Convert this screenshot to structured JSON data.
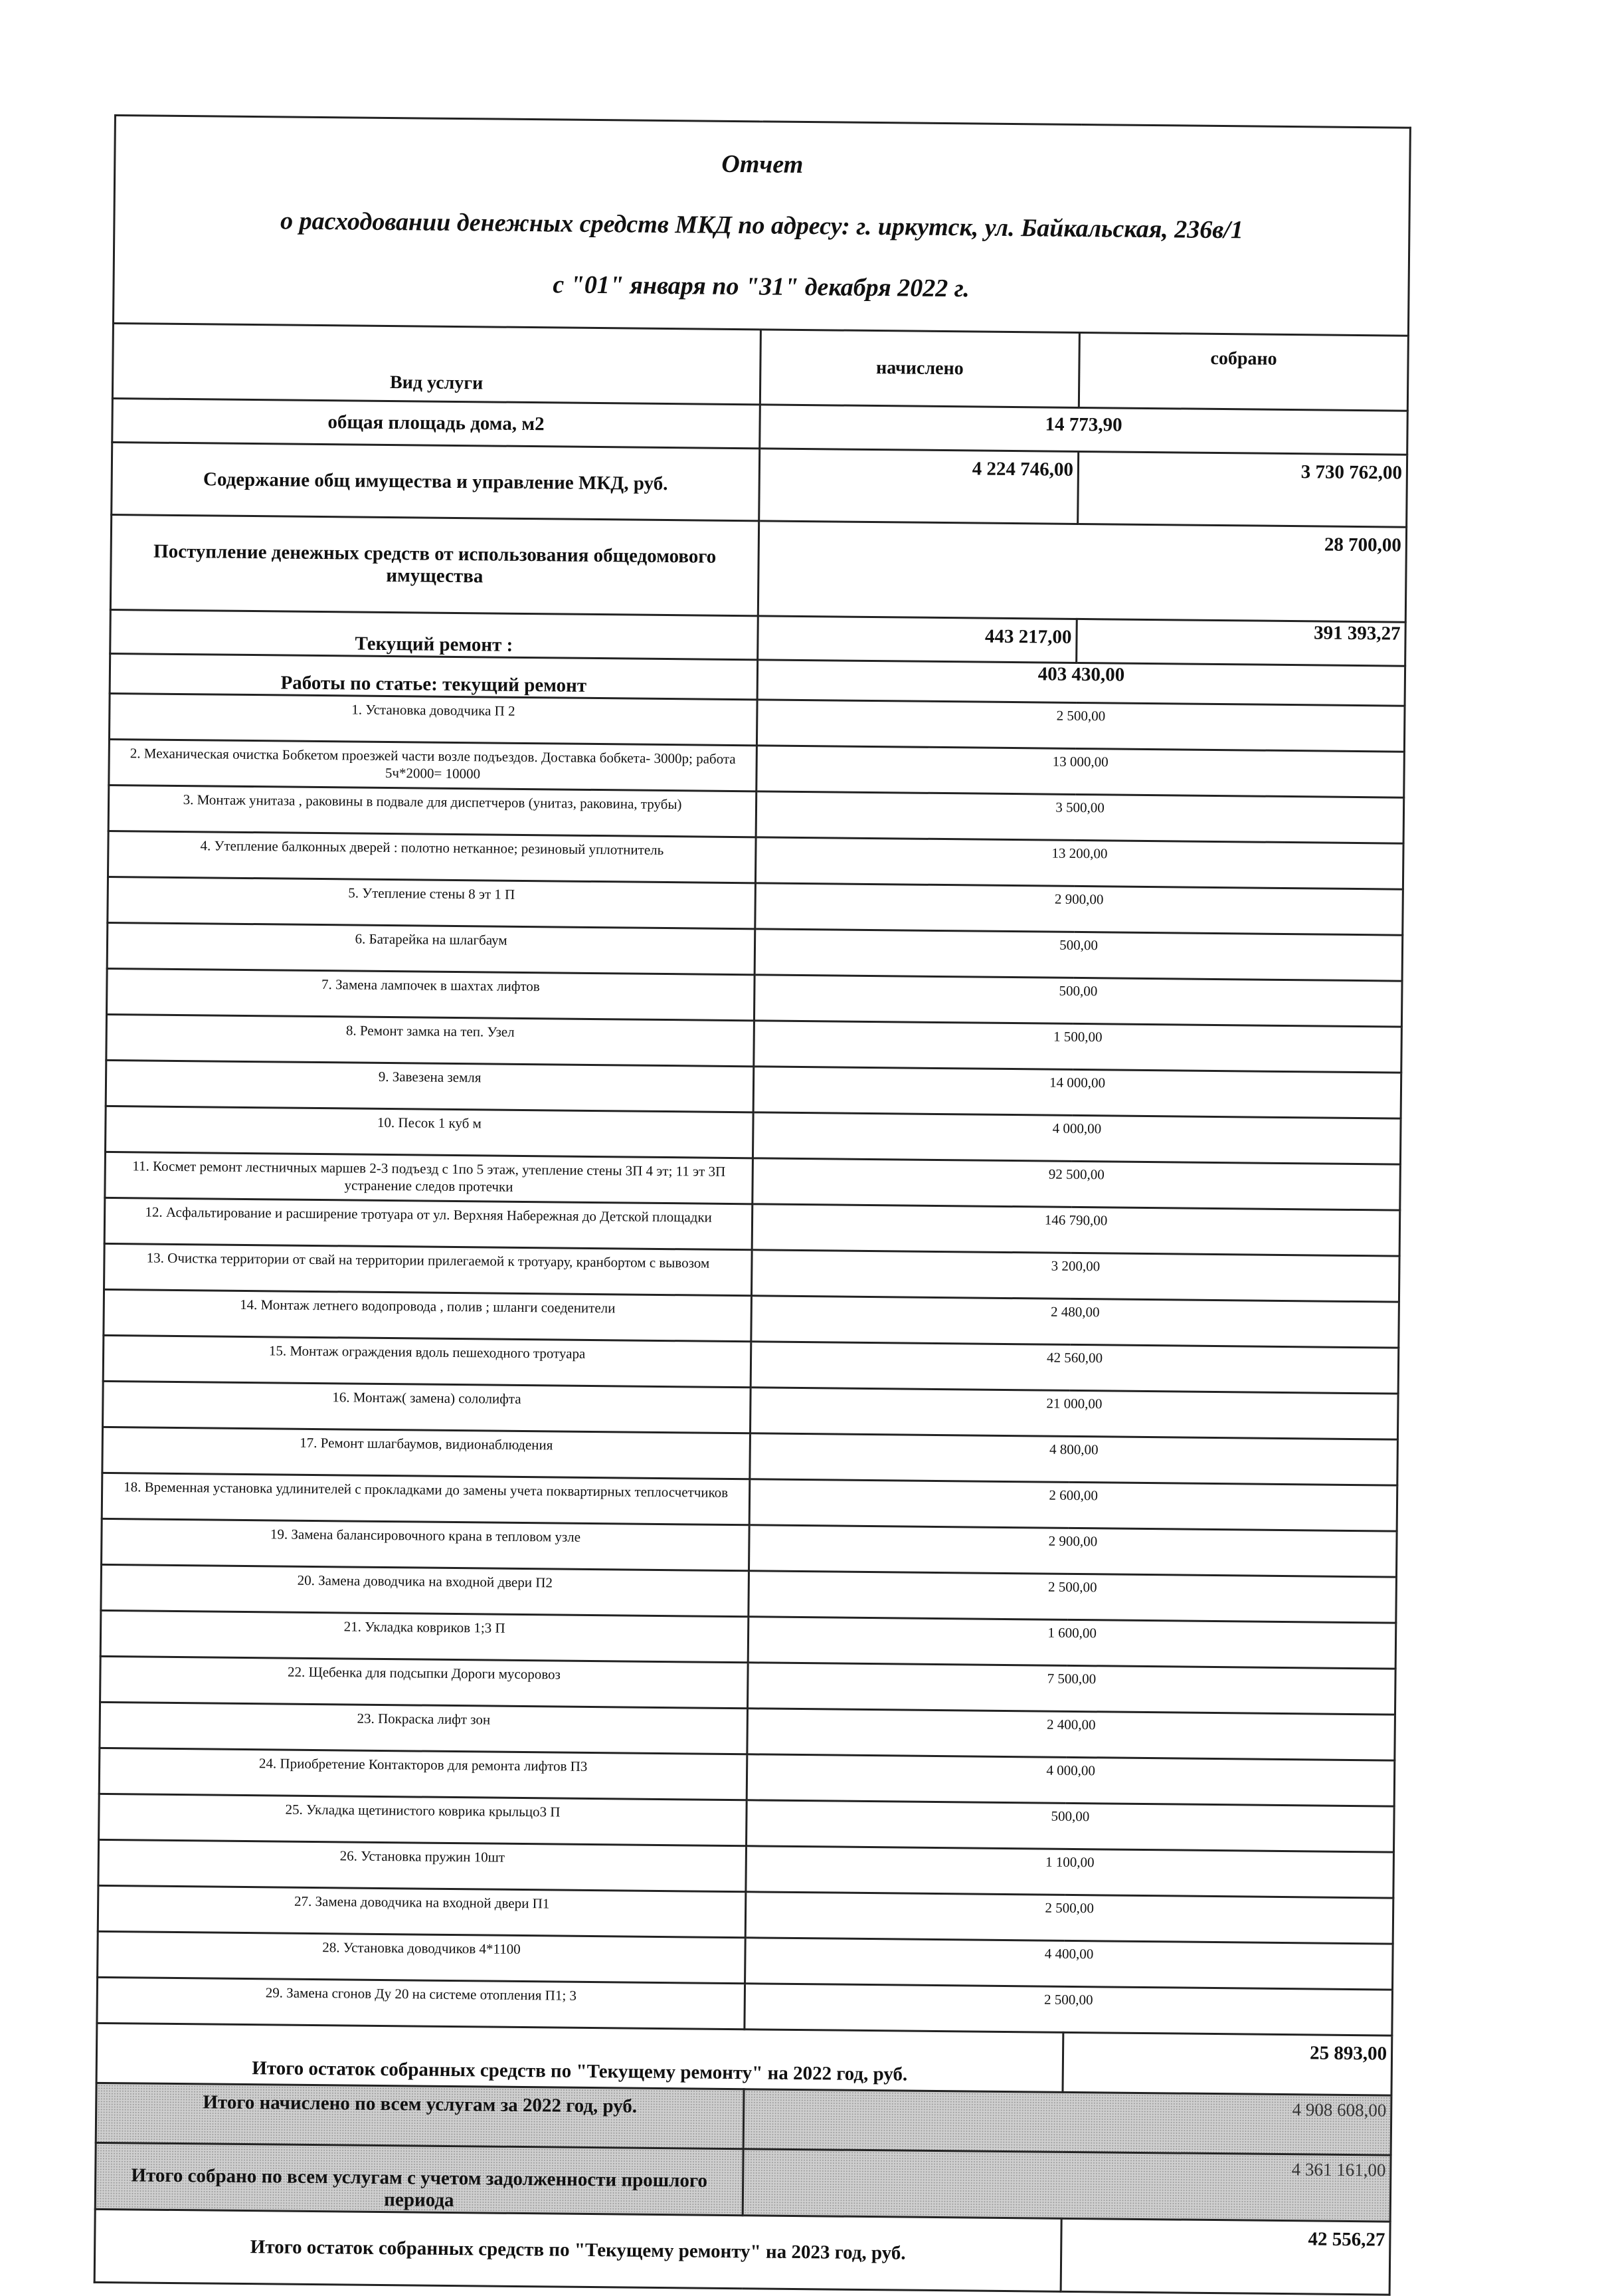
{
  "header": {
    "title": "Отчет",
    "subtitle": "о расходовании денежных средств МКД по адресу: г. иркутск, ул. Байкальская, 236в/1",
    "period": "с \"01\" января по \"31\" декабря 2022 г."
  },
  "columns": {
    "service": "Вид услуги",
    "charged": "начислено",
    "collected": "собрано"
  },
  "area": {
    "label": "общая площадь дома, м2",
    "value": "14 773,90"
  },
  "maintenance": {
    "label": "Содержание общ имущества и управление  МКД, руб.",
    "charged": "4 224 746,00",
    "collected": "3 730 762,00"
  },
  "common_property_income": {
    "label": "Поступление денежных средств от использования общедомового имущества",
    "value": "28 700,00"
  },
  "current_repair": {
    "label": "Текущий ремонт :",
    "charged": "443 217,00",
    "collected": "391 393,27"
  },
  "repair_works": {
    "label": "Работы по статье: текущий ремонт",
    "value": "403 430,00"
  },
  "items": [
    {
      "label": "1. Установка доводчика П 2",
      "value": "2 500,00"
    },
    {
      "label": "2. Механическая очистка Бобкетом проезжей части возле подъездов. Доставка бобкета- 3000р;  работа 5ч*2000= 10000",
      "value": "13 000,00"
    },
    {
      "label": "3. Монтаж унитаза , раковины в подвале для диспетчеров  (унитаз, раковина, трубы)",
      "value": "3 500,00"
    },
    {
      "label": "4. Утепление балконных дверей : полотно нетканное; резиновый уплотнитель",
      "value": "13 200,00"
    },
    {
      "label": "5. Утепление стены 8 эт 1 П",
      "value": "2 900,00"
    },
    {
      "label": "6. Батарейка на шлагбаум",
      "value": "500,00"
    },
    {
      "label": "7. Замена лампочек в шахтах лифтов",
      "value": "500,00"
    },
    {
      "label": "8. Ремонт замка на теп. Узел",
      "value": "1 500,00"
    },
    {
      "label": "9. Завезена земля",
      "value": "14 000,00"
    },
    {
      "label": "10. Песок 1 куб м",
      "value": "4 000,00"
    },
    {
      "label": "11. Космет ремонт лестничных маршев 2-3 подъезд  с 1по 5 этаж, утепление  стены 3П 4 эт; 11 эт 3П устранение следов протечки",
      "value": "92 500,00"
    },
    {
      "label": "12. Асфальтирование и расширение тротуара от   ул. Верхняя Набережная     до Детской площадки",
      "value": "146 790,00"
    },
    {
      "label": "13. Очистка территории от свай на территории прилегаемой к тротуару, кранбортом с вывозом",
      "value": "3 200,00"
    },
    {
      "label": "14. Монтаж летнего водопровода , полив ; шланги соеденители",
      "value": "2 480,00"
    },
    {
      "label": "15. Монтаж ограждения вдоль пешеходного тротуара",
      "value": "42 560,00"
    },
    {
      "label": "16. Монтаж( замена) сололифта",
      "value": "21 000,00"
    },
    {
      "label": "17. Ремонт шлагбаумов, видионаблюдения",
      "value": "4 800,00"
    },
    {
      "label": "18. Временная установка удлинителей с прокладками  до замены учета поквартирных теплосчетчиков",
      "value": "2 600,00"
    },
    {
      "label": "19. Замена балансировочного крана в тепловом узле",
      "value": "2 900,00"
    },
    {
      "label": "20. Замена доводчика на входной двери  П2",
      "value": "2 500,00"
    },
    {
      "label": "21. Укладка ковриков 1;3 П",
      "value": "1 600,00"
    },
    {
      "label": "22. Щебенка для подсыпки Дороги мусоровоз",
      "value": "7 500,00"
    },
    {
      "label": "23. Покраска лифт зон",
      "value": "2 400,00"
    },
    {
      "label": "24. Приобретение Контакторов для ремонта лифтов П3",
      "value": "4 000,00"
    },
    {
      "label": "25. Укладка щетинистого  коврика крыльцо3 П",
      "value": "500,00"
    },
    {
      "label": "26. Установка пружин 10шт",
      "value": "1 100,00"
    },
    {
      "label": "27. Замена доводчика на входной двери  П1",
      "value": "2 500,00"
    },
    {
      "label": "28. Установка доводчиков 4*1100",
      "value": "4 400,00"
    },
    {
      "label": "29. Замена сгонов Ду 20 на системе отопления  П1; 3",
      "value": "2 500,00"
    }
  ],
  "totals": {
    "balance_2022": {
      "label": "Итого остаток собранных средств по \"Текущему ремонту\" на 2022 год, руб.",
      "value": "25 893,00"
    },
    "charged_all": {
      "label": "Итого начислено по всем услугам  за 2022 год, руб.",
      "value": "4 908 608,00"
    },
    "collected_all": {
      "label": "Итого собрано по всем услугам с учетом задолженности прошлого периода",
      "value": "4 361 161,00"
    },
    "balance_2023": {
      "label": "Итого остаток собранных средств по \"Текущему ремонту\" на 2023 год, руб.",
      "value": "42 556,27"
    }
  }
}
